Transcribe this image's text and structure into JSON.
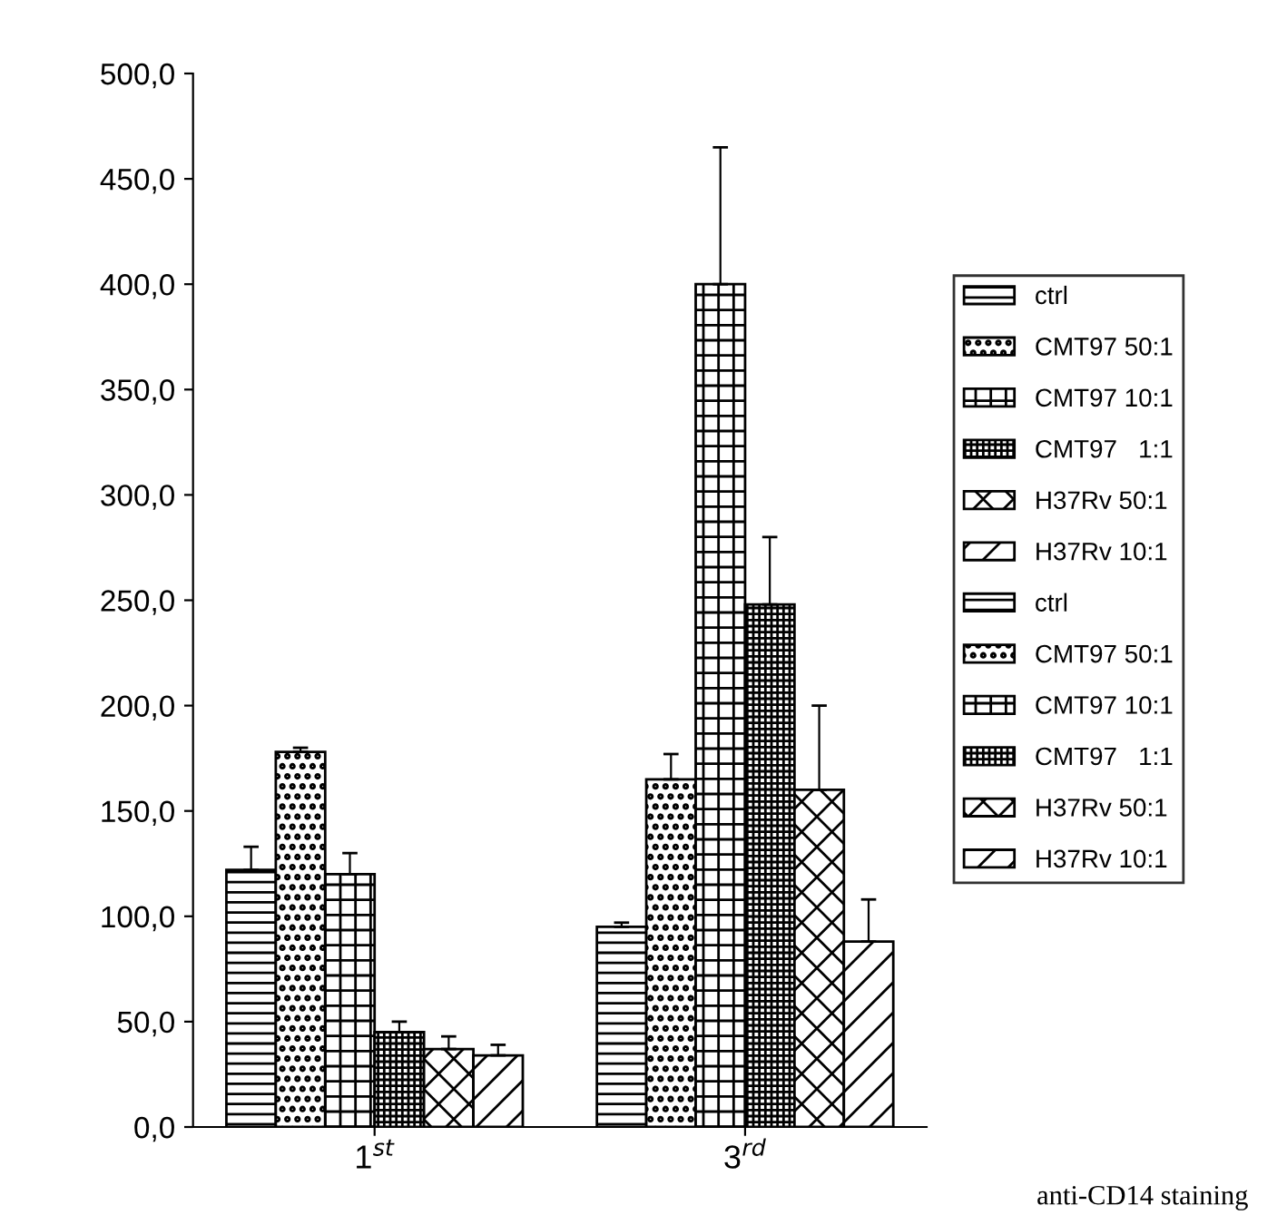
{
  "chart_data": {
    "type": "bar",
    "categories": [
      "1$^{st}$",
      "3$^{rd}$"
    ],
    "series": [
      {
        "name": "ctrl",
        "color": "#000000",
        "values": [
          122,
          95
        ],
        "errors": [
          11,
          2
        ]
      },
      {
        "name": "CMT97 50:1",
        "color": "#000000",
        "values": [
          178,
          165
        ],
        "errors": [
          2,
          12
        ]
      },
      {
        "name": "CMT97 10:1",
        "color": "#000000",
        "values": [
          120,
          400
        ],
        "errors": [
          10,
          65
        ]
      },
      {
        "name": "CMT97   1:1",
        "color": "#000000",
        "values": [
          45,
          248
        ],
        "errors": [
          5,
          32
        ]
      },
      {
        "name": "H37Rv 50:1",
        "color": "#000000",
        "values": [
          37,
          160
        ],
        "errors": [
          6,
          40
        ]
      },
      {
        "name": "H37Rv 10:1",
        "color": "#000000",
        "values": [
          34,
          88
        ],
        "errors": [
          5,
          20
        ]
      },
      {
        "name": "ctrl",
        "color": "#000000",
        "values": [
          null,
          null
        ]
      },
      {
        "name": "CMT97 50:1",
        "color": "#000000",
        "values": [
          null,
          null
        ]
      },
      {
        "name": "CMT97 10:1",
        "color": "#000000",
        "values": [
          null,
          null
        ]
      },
      {
        "name": "CMT97   1:1",
        "color": "#000000",
        "values": [
          null,
          null
        ]
      },
      {
        "name": "H37Rv 50:1",
        "color": "#000000",
        "values": [
          null,
          null
        ]
      },
      {
        "name": "H37Rv 10:1",
        "color": "#000000",
        "values": [
          null,
          null
        ]
      }
    ],
    "ylim": [
      0,
      500
    ],
    "yticks": [
      {
        "value": 0,
        "label": "0,0"
      },
      {
        "value": 50,
        "label": "50,0"
      },
      {
        "value": 100,
        "label": "100,0"
      },
      {
        "value": 150,
        "label": "150,0"
      },
      {
        "value": 200,
        "label": "200,0"
      },
      {
        "value": 250,
        "label": "250,0"
      },
      {
        "value": 300,
        "label": "300,0"
      },
      {
        "value": 350,
        "label": "350,0"
      },
      {
        "value": 400,
        "label": "400,0"
      },
      {
        "value": 450,
        "label": "450,0"
      },
      {
        "value": 500,
        "label": "500,0"
      }
    ],
    "legend": "right",
    "grid": false,
    "annotations": [
      "anti-CD14 staining"
    ]
  }
}
